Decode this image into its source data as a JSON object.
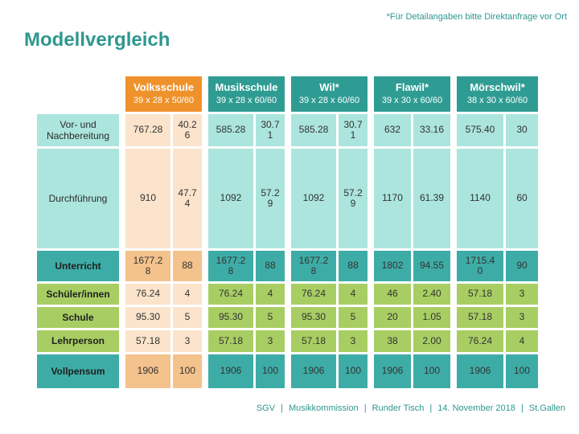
{
  "note": "*Für Detailangaben bitte Direktanfrage vor Ort",
  "title": "Modellvergleich",
  "colors": {
    "accent_teal_text": "#2E978F",
    "header_orange": "#F0922B",
    "header_teal": "#2F9C94",
    "cell_light_teal": "#ABE5DD",
    "cell_peach": "#FBE4CB",
    "cell_mid_orange": "#F4C28C",
    "cell_mid_teal": "#3EACA6",
    "cell_green": "#A8CE63"
  },
  "table": {
    "columns": [
      {
        "name": "Volksschule",
        "subtitle": "39 x 28 x 50/60",
        "theme": "orange"
      },
      {
        "name": "Musikschule",
        "subtitle": "39 x 28 x 60/60",
        "theme": "teal"
      },
      {
        "name": "Wil*",
        "subtitle": "39 x 28 x 60/60",
        "theme": "teal"
      },
      {
        "name": "Flawil*",
        "subtitle": "39 x 30 x 60/60",
        "theme": "teal"
      },
      {
        "name": "Mörschwil*",
        "subtitle": "38 x 30 x 60/60",
        "theme": "teal"
      }
    ],
    "rows": [
      {
        "label": "Vor- und Nachbereitung",
        "style": "light",
        "values": [
          [
            "767.28",
            "40.26"
          ],
          [
            "585.28",
            "30.71"
          ],
          [
            "585.28",
            "30.71"
          ],
          [
            "632",
            "33.16"
          ],
          [
            "575.40",
            "30"
          ]
        ]
      },
      {
        "label": "Durchführung",
        "style": "light",
        "values": [
          [
            "910",
            "47.74"
          ],
          [
            "1092",
            "57.29"
          ],
          [
            "1092",
            "57.29"
          ],
          [
            "1170",
            "61.39"
          ],
          [
            "1140",
            "60"
          ]
        ]
      },
      {
        "label": "Unterricht",
        "style": "dark",
        "values": [
          [
            "1677.28",
            "88"
          ],
          [
            "1677.28",
            "88"
          ],
          [
            "1677.28",
            "88"
          ],
          [
            "1802",
            "94.55"
          ],
          [
            "1715.40",
            "90"
          ]
        ]
      },
      {
        "label": "Schüler/innen",
        "style": "green",
        "values": [
          [
            "76.24",
            "4"
          ],
          [
            "76.24",
            "4"
          ],
          [
            "76.24",
            "4"
          ],
          [
            "46",
            "2.40"
          ],
          [
            "57.18",
            "3"
          ]
        ]
      },
      {
        "label": "Schule",
        "style": "green",
        "values": [
          [
            "95.30",
            "5"
          ],
          [
            "95.30",
            "5"
          ],
          [
            "95.30",
            "5"
          ],
          [
            "20",
            "1.05"
          ],
          [
            "57.18",
            "3"
          ]
        ]
      },
      {
        "label": "Lehrperson",
        "style": "green",
        "values": [
          [
            "57.18",
            "3"
          ],
          [
            "57.18",
            "3"
          ],
          [
            "57.18",
            "3"
          ],
          [
            "38",
            "2.00"
          ],
          [
            "76.24",
            "4"
          ]
        ]
      },
      {
        "label": "Vollpensum",
        "style": "full",
        "values": [
          [
            "1906",
            "100"
          ],
          [
            "1906",
            "100"
          ],
          [
            "1906",
            "100"
          ],
          [
            "1906",
            "100"
          ],
          [
            "1906",
            "100"
          ]
        ]
      }
    ]
  },
  "footer": {
    "items": [
      "SGV",
      "Musikkommission",
      "Runder Tisch",
      "14. November 2018",
      "St.Gallen"
    ],
    "separator": "|"
  }
}
